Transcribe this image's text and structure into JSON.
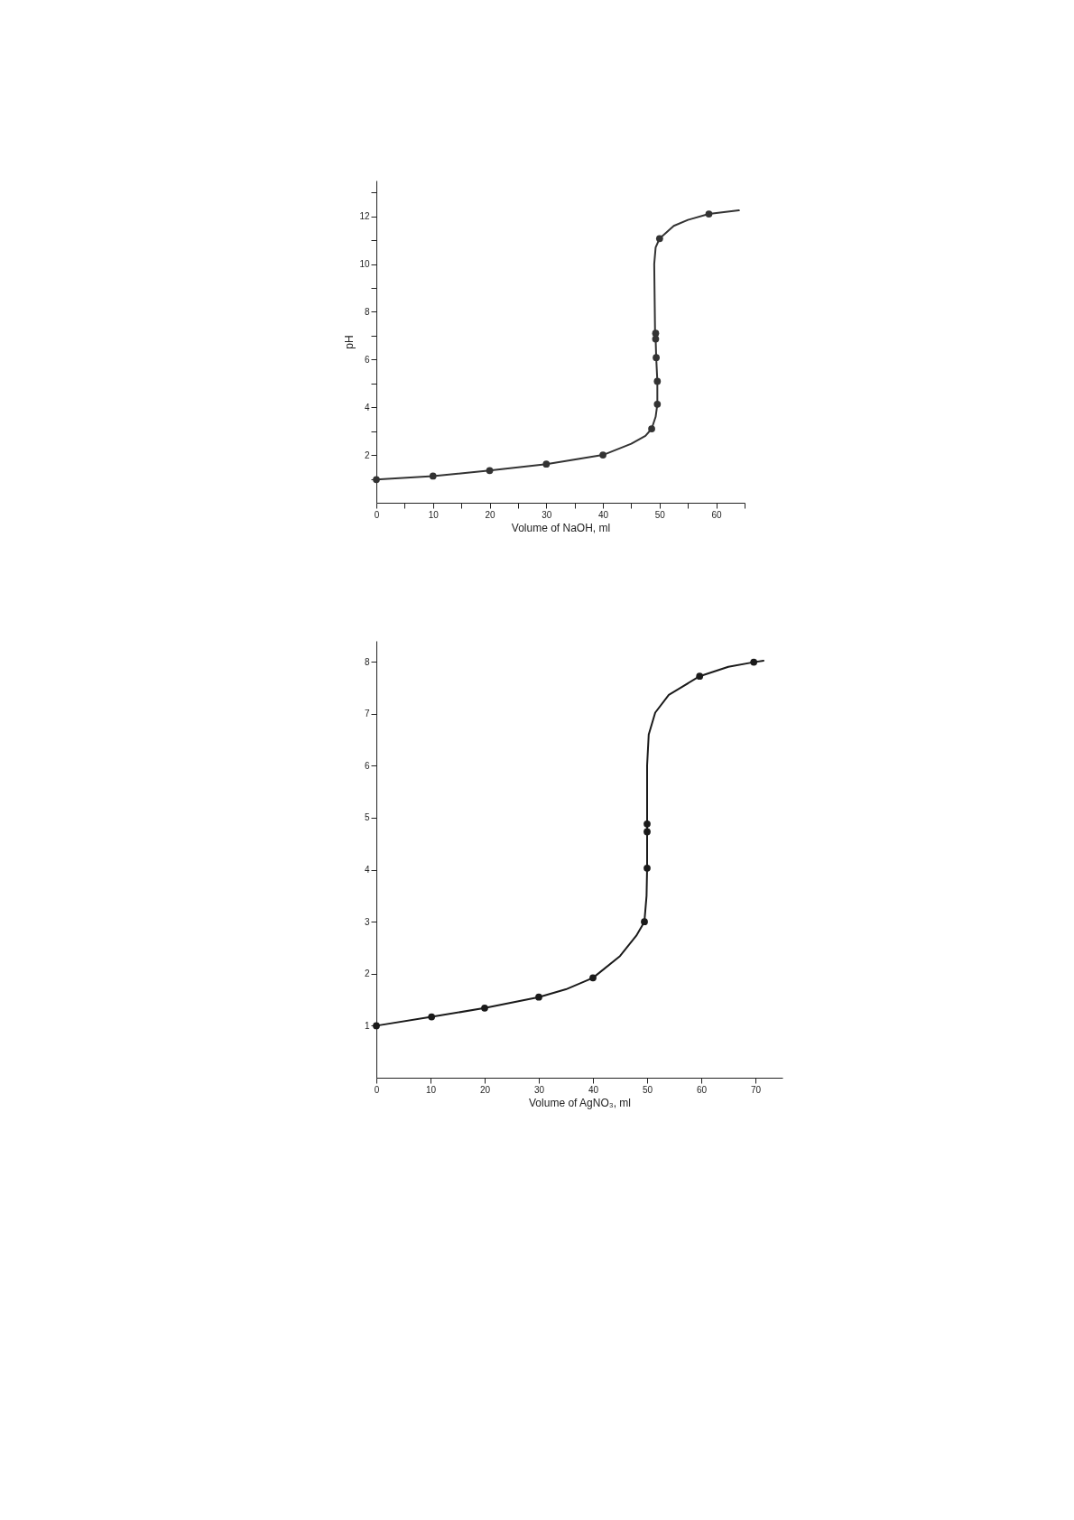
{
  "chart_data": [
    {
      "type": "line",
      "xlabel": "Volume of NaOH, ml",
      "ylabel": "pH",
      "xlim": [
        0,
        65
      ],
      "ylim": [
        0,
        13.5
      ],
      "xticks": [
        0,
        {
          "value": 5,
          "label": null
        },
        10,
        {
          "value": 15,
          "label": null
        },
        20,
        {
          "value": 25,
          "label": null
        },
        30,
        {
          "value": 35,
          "label": null
        },
        40,
        {
          "value": 45,
          "label": null
        },
        50,
        {
          "value": 55,
          "label": null
        },
        60,
        {
          "value": 65,
          "label": null
        }
      ],
      "yticks": [
        {
          "value": 1,
          "label": null
        },
        2,
        {
          "value": 3,
          "label": null
        },
        4,
        {
          "value": 5,
          "label": null
        },
        6,
        {
          "value": 7,
          "label": null
        },
        8,
        {
          "value": 9,
          "label": null
        },
        10,
        {
          "value": 11,
          "label": null
        },
        12,
        {
          "value": 13,
          "label": null
        }
      ],
      "grid": false,
      "line_style": "solid",
      "series": [
        {
          "color": "#333333",
          "marker": "none",
          "x": [
            0,
            10,
            20,
            30,
            40,
            45,
            47.5,
            48.6,
            49.3,
            49.6,
            49.6,
            49.4,
            49.3,
            49.2,
            49.05,
            49.3,
            50,
            52.5,
            55,
            58.7,
            64
          ],
          "values": [
            0.97,
            1.12,
            1.35,
            1.62,
            2.0,
            2.47,
            2.8,
            3.1,
            3.6,
            4.13,
            5.09,
            6.08,
            6.86,
            7.1,
            10.0,
            10.7,
            11.07,
            11.6,
            11.85,
            12.1,
            12.25
          ]
        },
        {
          "type": "scatter",
          "color": "#333333",
          "marker": "circle",
          "x": [
            0,
            10,
            20,
            30,
            40,
            48.6,
            49.6,
            49.6,
            49.4,
            49.3,
            49.3,
            50,
            58.7
          ],
          "values": [
            0.97,
            1.12,
            1.35,
            1.62,
            2.0,
            3.1,
            4.13,
            5.09,
            6.08,
            6.86,
            7.1,
            11.07,
            12.1
          ]
        }
      ]
    },
    {
      "type": "line",
      "xlabel": "Volume of AgNO₃, ml",
      "xlim": [
        0,
        75
      ],
      "ylim": [
        0,
        8.4
      ],
      "xticks": [
        0,
        10,
        20,
        30,
        40,
        50,
        60,
        70
      ],
      "yticks": [
        1,
        2,
        3,
        4,
        5,
        6,
        7,
        8
      ],
      "grid": false,
      "line_style": "solid",
      "series": [
        {
          "color": "#1a1a1a",
          "marker": "none",
          "x": [
            0,
            10.2,
            20,
            30,
            35,
            40,
            45,
            48,
            49.5,
            49.9,
            50,
            50,
            50,
            50.3,
            51.5,
            54,
            59.7,
            65,
            69.7,
            71.5
          ],
          "values": [
            1.0,
            1.17,
            1.34,
            1.55,
            1.7,
            1.92,
            2.34,
            2.73,
            3.0,
            3.5,
            4.03,
            4.88,
            6.0,
            6.6,
            7.02,
            7.36,
            7.72,
            7.9,
            7.99,
            8.02
          ]
        },
        {
          "type": "scatter",
          "color": "#1a1a1a",
          "marker": "circle",
          "x": [
            0,
            10.2,
            20,
            30,
            40,
            49.5,
            50,
            50,
            50,
            59.7,
            69.7
          ],
          "values": [
            1.0,
            1.17,
            1.34,
            1.55,
            1.92,
            3.0,
            4.03,
            4.73,
            4.88,
            7.72,
            7.99
          ]
        }
      ]
    }
  ]
}
